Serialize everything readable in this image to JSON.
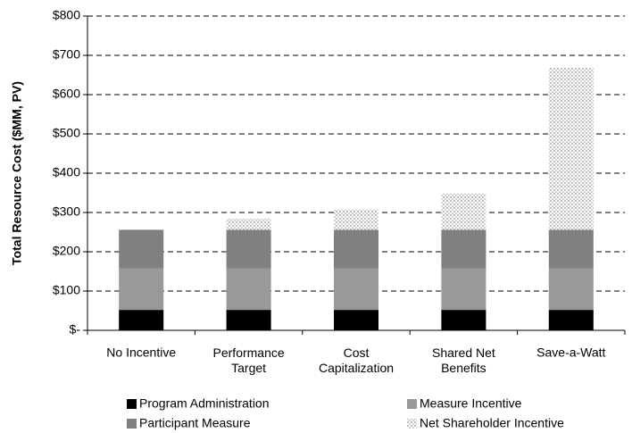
{
  "chart_data": {
    "type": "stacked_bar",
    "y_axis_label": "Total Resource Cost ($MM, PV)",
    "categories": [
      "No Incentive",
      "Performance\nTarget",
      "Cost\nCapitalization",
      "Shared Net\nBenefits",
      "Save-a-Watt"
    ],
    "series": [
      {
        "name": "Program Administration",
        "color": "#000000",
        "values": [
          52,
          52,
          52,
          52,
          52
        ]
      },
      {
        "name": "Measure Incentive",
        "color": "#999999",
        "values": [
          106,
          106,
          106,
          106,
          106
        ]
      },
      {
        "name": "Participant Measure",
        "color": "#808080",
        "values": [
          98,
          98,
          98,
          98,
          98
        ]
      },
      {
        "name": "Net Shareholder Incentive",
        "color": "#dcdcdc",
        "pattern": "dots",
        "values": [
          0,
          28,
          51,
          92,
          412
        ]
      }
    ],
    "ylim": [
      0,
      800
    ],
    "yticks": [
      {
        "value": 0,
        "label": "$-"
      },
      {
        "value": 100,
        "label": "$100"
      },
      {
        "value": 200,
        "label": "$200"
      },
      {
        "value": 300,
        "label": "$300"
      },
      {
        "value": 400,
        "label": "$400"
      },
      {
        "value": 500,
        "label": "$500"
      },
      {
        "value": 600,
        "label": "$600"
      },
      {
        "value": 700,
        "label": "$700"
      },
      {
        "value": 800,
        "label": "$800"
      }
    ],
    "grid": true
  }
}
